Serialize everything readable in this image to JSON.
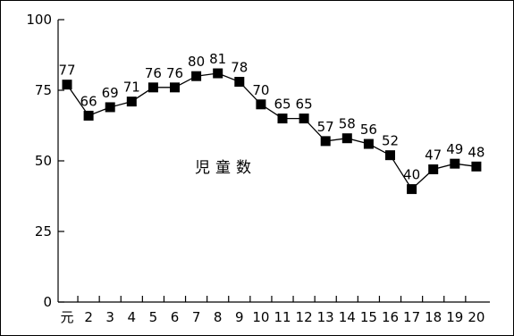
{
  "chart_data": {
    "type": "line",
    "categories": [
      "元",
      "2",
      "3",
      "4",
      "5",
      "6",
      "7",
      "8",
      "9",
      "10",
      "11",
      "12",
      "13",
      "14",
      "15",
      "16",
      "17",
      "18",
      "19",
      "20"
    ],
    "series": [
      {
        "name": "児童数",
        "values": [
          77,
          66,
          69,
          71,
          76,
          76,
          80,
          81,
          78,
          70,
          65,
          65,
          57,
          58,
          56,
          52,
          40,
          47,
          49,
          48
        ]
      }
    ],
    "yticks": [
      0,
      25,
      50,
      75,
      100
    ],
    "ylim": [
      0,
      100
    ],
    "grid": false,
    "legend": "none",
    "marker": "square",
    "color": "#000000"
  }
}
